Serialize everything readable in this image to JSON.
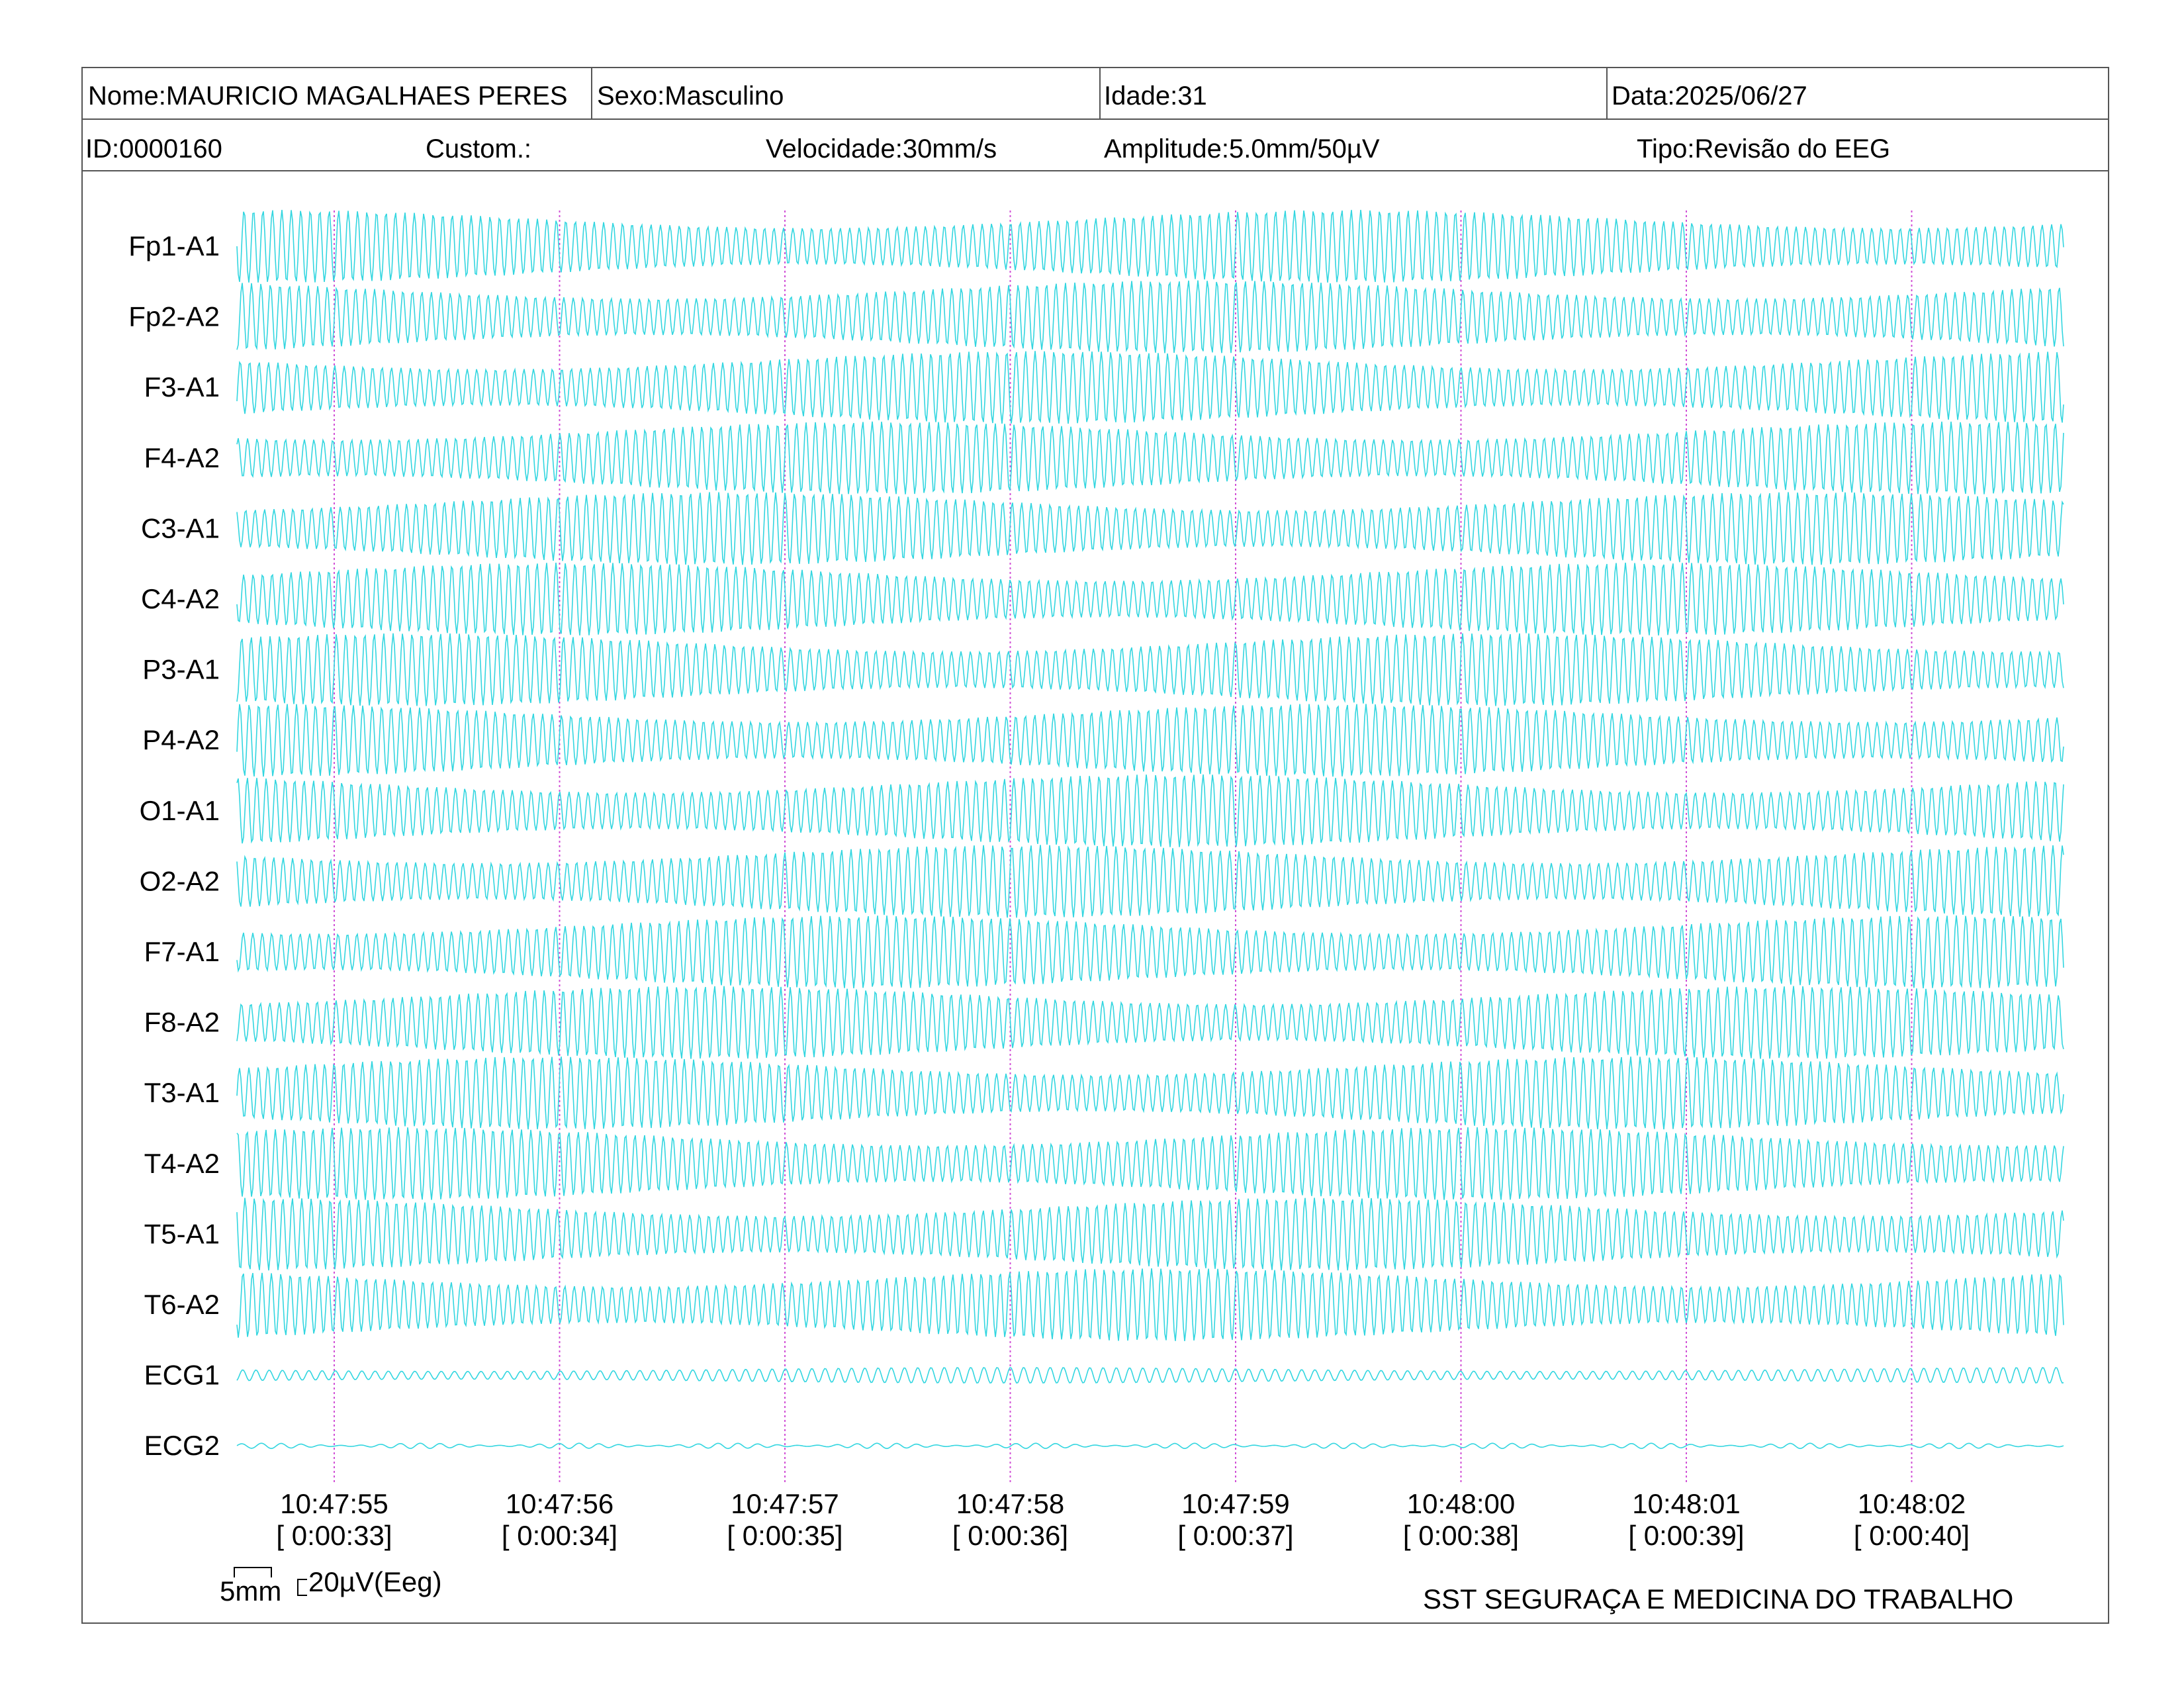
{
  "header": {
    "nome": "Nome:MAURICIO MAGALHAES PERES",
    "sexo": "Sexo:Masculino",
    "idade": "Idade:31",
    "data": "Data:2025/06/27",
    "id": "ID:0000160",
    "custom": "Custom.:",
    "velocidade": "Velocidade:30mm/s",
    "amplitude": "Amplitude:5.0mm/50µV",
    "tipo": "Tipo:Revisão do EEG"
  },
  "chart_data": {
    "type": "line",
    "channels": [
      "Fp1-A1",
      "Fp2-A2",
      "F3-A1",
      "F4-A2",
      "C3-A1",
      "C4-A2",
      "P3-A1",
      "P4-A2",
      "O1-A1",
      "O2-A2",
      "F7-A1",
      "F8-A2",
      "T3-A1",
      "T4-A2",
      "T5-A1",
      "T6-A2",
      "ECG1",
      "ECG2"
    ],
    "time_marks": [
      {
        "clock": "10:47:55",
        "elapsed": "[ 0:00:33]"
      },
      {
        "clock": "10:47:56",
        "elapsed": "[ 0:00:34]"
      },
      {
        "clock": "10:47:57",
        "elapsed": "[ 0:00:35]"
      },
      {
        "clock": "10:47:58",
        "elapsed": "[ 0:00:36]"
      },
      {
        "clock": "10:47:59",
        "elapsed": "[ 0:00:37]"
      },
      {
        "clock": "10:48:00",
        "elapsed": "[ 0:00:38]"
      },
      {
        "clock": "10:48:01",
        "elapsed": "[ 0:00:39]"
      },
      {
        "clock": "10:48:02",
        "elapsed": "[ 0:00:40]"
      }
    ],
    "trace_color": "#33d6e0",
    "marker_color": "#d14fd6",
    "grid": false
  },
  "footer": {
    "scale_time": "5mm",
    "scale_amp": "20µV(Eeg)",
    "company": "SST SEGURAÇA E MEDICINA DO TRABALHO"
  }
}
